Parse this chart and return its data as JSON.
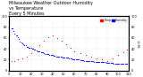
{
  "title": "Milwaukee Weather Outdoor Humidity\nvs Temperature\nEvery 5 Minutes",
  "title_fontsize": 3.5,
  "background_color": "#ffffff",
  "plot_bg_color": "#ffffff",
  "grid_color": "#cccccc",
  "blue_color": "#0000ff",
  "red_color": "#ff0000",
  "legend_blue_label": "Humidity",
  "legend_red_label": "Temp",
  "ylabel_right": "%/°F",
  "ylabel_fontsize": 3,
  "ylim": [
    0,
    100
  ],
  "xlim": [
    0,
    110
  ],
  "marker_size": 0.8,
  "blue_x": [
    2,
    3,
    4,
    5,
    6,
    7,
    8,
    9,
    10,
    11,
    12,
    13,
    14,
    15,
    16,
    17,
    18,
    19,
    20,
    21,
    22,
    23,
    24,
    25,
    26,
    27,
    28,
    29,
    30,
    31,
    32,
    33,
    34,
    35,
    36,
    37,
    38,
    39,
    40,
    41,
    42,
    43,
    44,
    45,
    46,
    47,
    48,
    49,
    50,
    51,
    52,
    53,
    54,
    55,
    56,
    57,
    58,
    59,
    60,
    61,
    62,
    63,
    64,
    65,
    66,
    67,
    68,
    69,
    70,
    71,
    72,
    73,
    74,
    75,
    76,
    77,
    78,
    79,
    80,
    81,
    82,
    83,
    84,
    85,
    86,
    87,
    88,
    89,
    90,
    91,
    92,
    93,
    94,
    95,
    96,
    97,
    98,
    99,
    100,
    101,
    102,
    103,
    104,
    105,
    106,
    107,
    108
  ],
  "blue_y": [
    78,
    77,
    72,
    68,
    65,
    64,
    62,
    58,
    54,
    52,
    50,
    49,
    47,
    46,
    44,
    43,
    42,
    42,
    41,
    40,
    40,
    39,
    38,
    37,
    36,
    35,
    35,
    34,
    33,
    33,
    32,
    31,
    31,
    30,
    30,
    29,
    28,
    28,
    28,
    27,
    27,
    26,
    26,
    26,
    25,
    25,
    25,
    24,
    24,
    24,
    23,
    23,
    23,
    22,
    22,
    22,
    21,
    21,
    21,
    20,
    20,
    20,
    20,
    19,
    19,
    19,
    19,
    18,
    18,
    18,
    18,
    17,
    17,
    17,
    17,
    17,
    16,
    16,
    16,
    16,
    16,
    15,
    15,
    15,
    15,
    15,
    15,
    14,
    14,
    14,
    14,
    14,
    14,
    14,
    13,
    13,
    13,
    13,
    13,
    13,
    13,
    13,
    12,
    12,
    12,
    12,
    12
  ],
  "red_x": [
    2,
    5,
    8,
    12,
    16,
    20,
    24,
    28,
    32,
    36,
    40,
    44,
    48,
    52,
    56,
    60,
    65,
    70,
    75,
    80,
    85,
    90,
    95,
    100,
    105,
    108
  ],
  "red_y": [
    18,
    18,
    20,
    22,
    26,
    32,
    38,
    46,
    55,
    62,
    65,
    60,
    55,
    48,
    42,
    36,
    32,
    28,
    25,
    22,
    20,
    18,
    22,
    28,
    34,
    38
  ],
  "tick_labelsize": 2.5,
  "dot_alpha": 0.9
}
